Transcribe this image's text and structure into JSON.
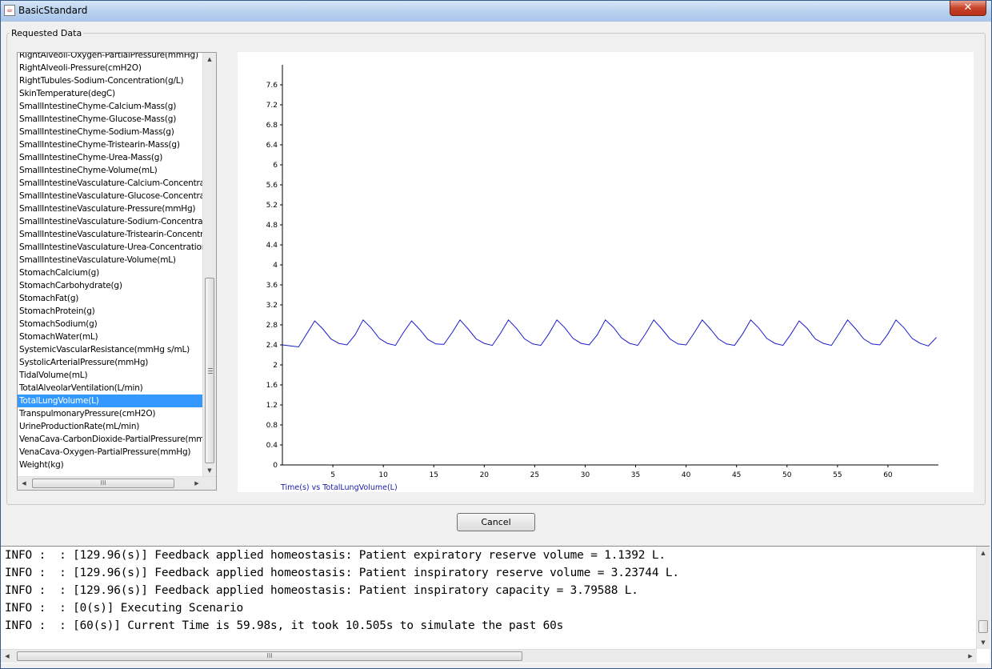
{
  "window": {
    "title": "BasicStandard",
    "close_label": "✕"
  },
  "group": {
    "label": "Requested Data"
  },
  "list": {
    "items": [
      "RightAlveoli-Oxygen-PartialPressure(mmHg)",
      "RightAlveoli-Pressure(cmH2O)",
      "RightTubules-Sodium-Concentration(g/L)",
      "SkinTemperature(degC)",
      "SmallIntestineChyme-Calcium-Mass(g)",
      "SmallIntestineChyme-Glucose-Mass(g)",
      "SmallIntestineChyme-Sodium-Mass(g)",
      "SmallIntestineChyme-Tristearin-Mass(g)",
      "SmallIntestineChyme-Urea-Mass(g)",
      "SmallIntestineChyme-Volume(mL)",
      "SmallIntestineVasculature-Calcium-Concentration",
      "SmallIntestineVasculature-Glucose-Concentration",
      "SmallIntestineVasculature-Pressure(mmHg)",
      "SmallIntestineVasculature-Sodium-Concentration",
      "SmallIntestineVasculature-Tristearin-Concentrat",
      "SmallIntestineVasculature-Urea-Concentration(m",
      "SmallIntestineVasculature-Volume(mL)",
      "StomachCalcium(g)",
      "StomachCarbohydrate(g)",
      "StomachFat(g)",
      "StomachProtein(g)",
      "StomachSodium(g)",
      "StomachWater(mL)",
      "SystemicVascularResistance(mmHg s/mL)",
      "SystolicArterialPressure(mmHg)",
      "TidalVolume(mL)",
      "TotalAlveolarVentilation(L/min)",
      "TotalLungVolume(L)",
      "TranspulmonaryPressure(cmH2O)",
      "UrineProductionRate(mL/min)",
      "VenaCava-CarbonDioxide-PartialPressure(mmHg",
      "VenaCava-Oxygen-PartialPressure(mmHg)",
      "Weight(kg)"
    ],
    "selected_item": "TotalLungVolume(L)",
    "scroll_up_glyph": "▲",
    "scroll_down_glyph": "▼",
    "scroll_left_glyph": "◀",
    "scroll_right_glyph": "▶",
    "hthumb_grip": "III"
  },
  "buttons": {
    "cancel_label": "Cancel"
  },
  "console": {
    "lines": [
      "INFO :  : [129.96(s)] Feedback applied homeostasis: Patient expiratory reserve volume = 1.1392 L.",
      "INFO :  : [129.96(s)] Feedback applied homeostasis: Patient inspiratory reserve volume = 3.23744 L.",
      "INFO :  : [129.96(s)] Feedback applied homeostasis: Patient inspiratory capacity = 3.79588 L.",
      "INFO :  : [0(s)] Executing Scenario",
      "INFO :  : [60(s)] Current Time is 59.98s, it took 10.505s to simulate the past 60s"
    ]
  },
  "colors": {
    "selection": "#3399ff",
    "line": "#1a1acc",
    "caption": "#1a1aaa"
  },
  "chart_data": {
    "type": "line",
    "title": "",
    "caption": "Time(s) vs TotalLungVolume(L)",
    "xlabel": "",
    "ylabel": "",
    "xlim": [
      0,
      65
    ],
    "ylim": [
      0,
      7.8
    ],
    "x_ticks": [
      5,
      10,
      15,
      20,
      25,
      30,
      35,
      40,
      45,
      50,
      55,
      60
    ],
    "y_ticks": [
      "0",
      "0.4",
      "0.8",
      "1.2",
      "1.6",
      "2",
      "2.4",
      "2.8",
      "3.2",
      "3.6",
      "4",
      "4.4",
      "4.8",
      "5.2",
      "5.6",
      "6",
      "6.4",
      "6.8",
      "7.2",
      "7.6"
    ],
    "grid": false,
    "legend": "none",
    "series": [
      {
        "x": [
          0.0,
          0.8,
          1.6,
          2.4,
          3.2,
          4.0,
          4.8,
          5.6,
          6.4,
          7.2,
          8.0,
          8.8,
          9.6,
          10.4,
          11.2,
          12.0,
          12.8,
          13.6,
          14.4,
          15.2,
          16.0,
          16.8,
          17.6,
          18.4,
          19.2,
          20.0,
          20.8,
          21.6,
          22.4,
          23.2,
          24.0,
          24.8,
          25.6,
          26.4,
          27.2,
          28.0,
          28.8,
          29.6,
          30.4,
          31.2,
          32.0,
          32.8,
          33.6,
          34.4,
          35.2,
          36.0,
          36.8,
          37.6,
          38.4,
          39.2,
          40.0,
          40.8,
          41.6,
          42.4,
          43.2,
          44.0,
          44.8,
          45.6,
          46.4,
          47.2,
          48.0,
          48.8,
          49.6,
          50.4,
          51.2,
          52.0,
          52.8,
          53.6,
          54.4,
          55.2,
          56.0,
          56.8,
          57.6,
          58.4,
          59.2,
          60.0,
          60.8,
          61.6,
          62.4,
          63.2,
          64.0,
          64.8
        ],
        "y": [
          2.4,
          2.38,
          2.36,
          2.62,
          2.88,
          2.72,
          2.52,
          2.43,
          2.4,
          2.6,
          2.9,
          2.74,
          2.53,
          2.43,
          2.39,
          2.65,
          2.88,
          2.71,
          2.51,
          2.42,
          2.41,
          2.64,
          2.9,
          2.72,
          2.52,
          2.43,
          2.39,
          2.63,
          2.9,
          2.73,
          2.52,
          2.42,
          2.39,
          2.62,
          2.9,
          2.74,
          2.53,
          2.43,
          2.4,
          2.6,
          2.9,
          2.75,
          2.54,
          2.43,
          2.39,
          2.63,
          2.9,
          2.72,
          2.52,
          2.42,
          2.4,
          2.64,
          2.9,
          2.72,
          2.52,
          2.42,
          2.39,
          2.62,
          2.9,
          2.74,
          2.53,
          2.43,
          2.39,
          2.62,
          2.88,
          2.73,
          2.52,
          2.43,
          2.39,
          2.64,
          2.9,
          2.72,
          2.52,
          2.42,
          2.4,
          2.62,
          2.9,
          2.74,
          2.53,
          2.43,
          2.38,
          2.55
        ]
      }
    ]
  }
}
